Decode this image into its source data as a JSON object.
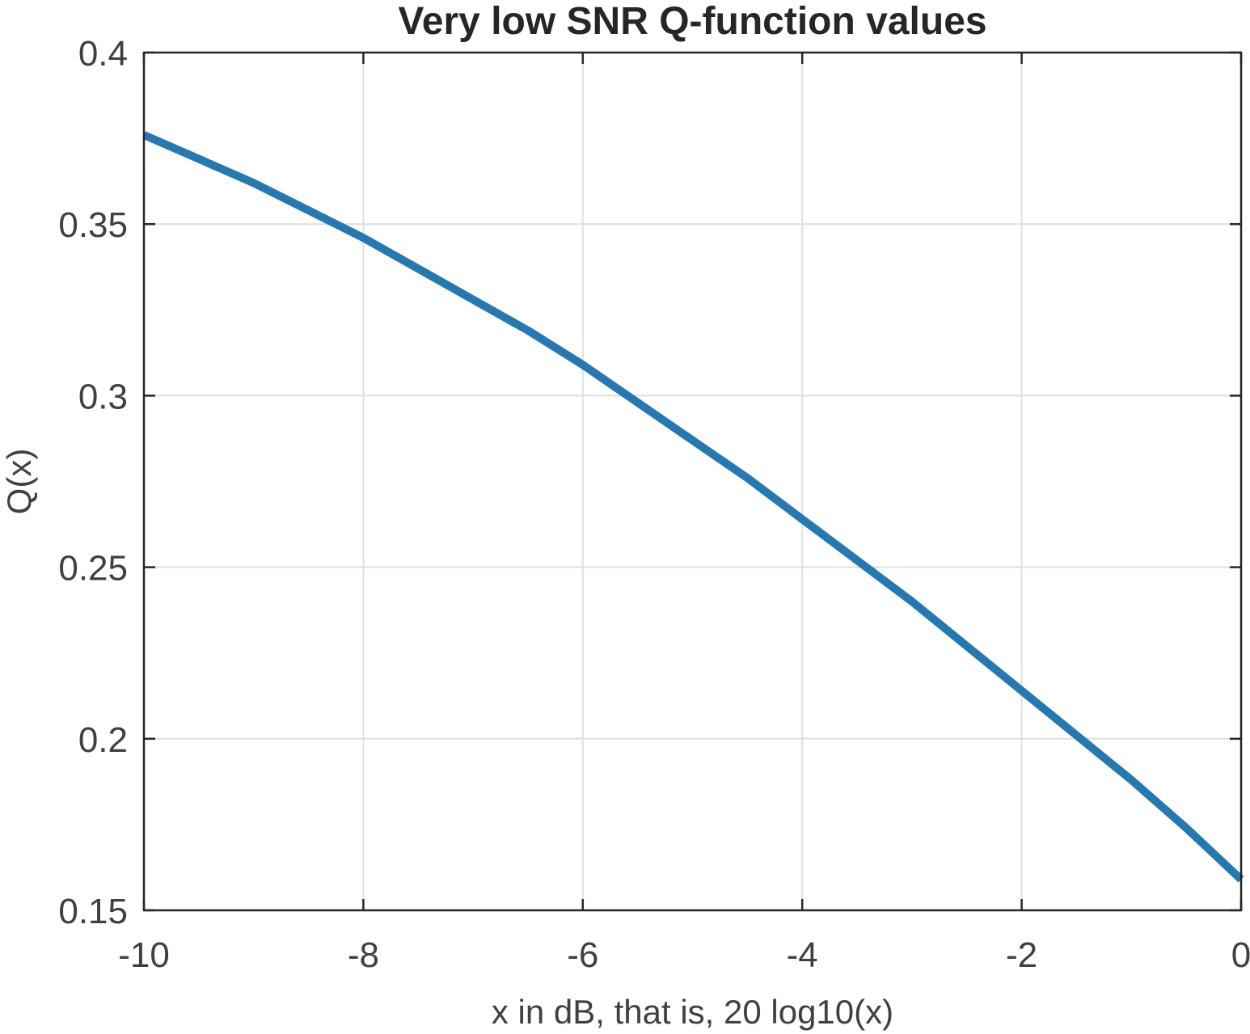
{
  "chart_data": {
    "type": "line",
    "title": "Very low SNR Q-function values",
    "xlabel": "x in dB, that is, 20 log10(x)",
    "ylabel": "Q(x)",
    "xlim": [
      -10,
      0
    ],
    "ylim": [
      0.15,
      0.4
    ],
    "xticks": [
      -10,
      -8,
      -6,
      -4,
      -2,
      0
    ],
    "xtick_labels": [
      "-10",
      "-8",
      "-6",
      "-4",
      "-2",
      "0"
    ],
    "yticks": [
      0.15,
      0.2,
      0.25,
      0.3,
      0.35,
      0.4
    ],
    "ytick_labels": [
      "0.15",
      "0.2",
      "0.25",
      "0.3",
      "0.35",
      "0.4"
    ],
    "grid": true,
    "series": [
      {
        "color": "#2878b0",
        "x": [
          -10,
          -9.5,
          -9,
          -8.5,
          -8,
          -7.5,
          -7,
          -6.5,
          -6,
          -5.5,
          -5,
          -4.5,
          -4,
          -3.5,
          -3,
          -2.5,
          -2,
          -1.5,
          -1,
          -0.5,
          0
        ],
        "y": [
          0.376,
          0.369,
          0.362,
          0.354,
          0.346,
          0.337,
          0.328,
          0.319,
          0.309,
          0.298,
          0.287,
          0.276,
          0.264,
          0.252,
          0.24,
          0.227,
          0.214,
          0.201,
          0.188,
          0.174,
          0.159
        ]
      }
    ]
  }
}
